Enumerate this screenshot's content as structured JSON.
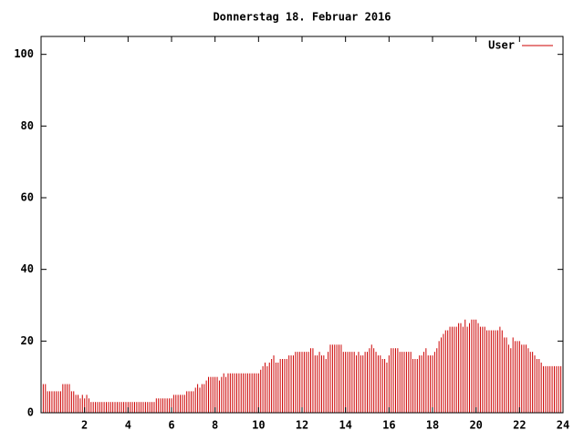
{
  "chart_data": {
    "type": "impulses",
    "title": "Donnerstag 18. Februar 2016",
    "legend_position": "top-right",
    "xlim": [
      0,
      24
    ],
    "xticks": [
      2,
      4,
      6,
      8,
      10,
      12,
      14,
      16,
      18,
      20,
      22,
      24
    ],
    "ylim": [
      0,
      105
    ],
    "yticks": [
      0,
      20,
      40,
      60,
      80,
      100
    ],
    "series": [
      {
        "name": "User",
        "color": "#cc0000",
        "x": [
          0,
          0.1,
          0.2,
          0.3,
          0.4,
          0.5,
          0.6,
          0.7,
          0.8,
          0.9,
          1,
          1.1,
          1.2,
          1.3,
          1.4,
          1.5,
          1.6,
          1.7,
          1.8,
          1.9,
          2,
          2.1,
          2.2,
          2.3,
          2.4,
          2.5,
          2.6,
          2.7,
          2.8,
          2.9,
          3,
          3.1,
          3.2,
          3.3,
          3.4,
          3.5,
          3.6,
          3.7,
          3.8,
          3.9,
          4,
          4.1,
          4.2,
          4.3,
          4.4,
          4.5,
          4.6,
          4.7,
          4.8,
          4.9,
          5,
          5.1,
          5.2,
          5.3,
          5.4,
          5.5,
          5.6,
          5.7,
          5.8,
          5.9,
          6,
          6.1,
          6.2,
          6.3,
          6.4,
          6.5,
          6.6,
          6.7,
          6.8,
          6.9,
          7,
          7.1,
          7.2,
          7.3,
          7.4,
          7.5,
          7.6,
          7.7,
          7.8,
          7.9,
          8,
          8.1,
          8.2,
          8.3,
          8.4,
          8.5,
          8.6,
          8.7,
          8.8,
          8.9,
          9,
          9.1,
          9.2,
          9.3,
          9.4,
          9.5,
          9.6,
          9.7,
          9.8,
          9.9,
          10,
          10.1,
          10.2,
          10.3,
          10.4,
          10.5,
          10.6,
          10.7,
          10.8,
          10.9,
          11,
          11.1,
          11.2,
          11.3,
          11.4,
          11.5,
          11.6,
          11.7,
          11.8,
          11.9,
          12,
          12.1,
          12.2,
          12.3,
          12.4,
          12.5,
          12.6,
          12.7,
          12.8,
          12.9,
          13,
          13.1,
          13.2,
          13.3,
          13.4,
          13.5,
          13.6,
          13.7,
          13.8,
          13.9,
          14,
          14.1,
          14.2,
          14.3,
          14.4,
          14.5,
          14.6,
          14.7,
          14.8,
          14.9,
          15,
          15.1,
          15.2,
          15.3,
          15.4,
          15.5,
          15.6,
          15.7,
          15.8,
          15.9,
          16,
          16.1,
          16.2,
          16.3,
          16.4,
          16.5,
          16.6,
          16.7,
          16.8,
          16.9,
          17,
          17.1,
          17.2,
          17.3,
          17.4,
          17.5,
          17.6,
          17.7,
          17.8,
          17.9,
          18,
          18.1,
          18.2,
          18.3,
          18.4,
          18.5,
          18.6,
          18.7,
          18.8,
          18.9,
          19,
          19.1,
          19.2,
          19.3,
          19.4,
          19.5,
          19.6,
          19.7,
          19.8,
          19.9,
          20,
          20.1,
          20.2,
          20.3,
          20.4,
          20.5,
          20.6,
          20.7,
          20.8,
          20.9,
          21,
          21.1,
          21.2,
          21.3,
          21.4,
          21.5,
          21.6,
          21.7,
          21.8,
          21.9,
          22,
          22.1,
          22.2,
          22.3,
          22.4,
          22.5,
          22.6,
          22.7,
          22.8,
          22.9,
          23,
          23.1,
          23.2,
          23.3,
          23.4,
          23.5,
          23.6,
          23.7,
          23.8,
          23.9
        ],
        "values": [
          9,
          8,
          8,
          6,
          6,
          6,
          6,
          6,
          6,
          6,
          8,
          8,
          8,
          8,
          6,
          6,
          5,
          5,
          4,
          5,
          4,
          5,
          4,
          3,
          3,
          3,
          3,
          3,
          3,
          3,
          3,
          3,
          3,
          3,
          3,
          3,
          3,
          3,
          3,
          3,
          3,
          3,
          3,
          3,
          3,
          3,
          3,
          3,
          3,
          3,
          3,
          3,
          3,
          4,
          4,
          4,
          4,
          4,
          4,
          4,
          4,
          5,
          5,
          5,
          5,
          5,
          5,
          6,
          6,
          6,
          6,
          7,
          8,
          7,
          8,
          8,
          9,
          10,
          10,
          10,
          10,
          10,
          9,
          10,
          11,
          10,
          11,
          11,
          11,
          11,
          11,
          11,
          11,
          11,
          11,
          11,
          11,
          11,
          11,
          11,
          11,
          12,
          13,
          14,
          13,
          14,
          15,
          16,
          14,
          14,
          15,
          15,
          15,
          15,
          16,
          16,
          16,
          17,
          17,
          17,
          17,
          17,
          17,
          17,
          18,
          18,
          16,
          16,
          17,
          16,
          16,
          15,
          17,
          19,
          19,
          19,
          19,
          19,
          19,
          17,
          17,
          17,
          17,
          17,
          17,
          16,
          17,
          16,
          16,
          17,
          17,
          18,
          19,
          18,
          17,
          16,
          16,
          15,
          15,
          14,
          16,
          18,
          18,
          18,
          18,
          17,
          17,
          17,
          17,
          17,
          17,
          15,
          15,
          15,
          16,
          16,
          17,
          18,
          16,
          16,
          16,
          17,
          18,
          20,
          21,
          22,
          23,
          23,
          24,
          24,
          24,
          24,
          25,
          25,
          24,
          26,
          24,
          25,
          26,
          26,
          26,
          25,
          24,
          24,
          24,
          23,
          23,
          23,
          23,
          23,
          23,
          24,
          23,
          21,
          21,
          19,
          18,
          21,
          20,
          20,
          20,
          19,
          19,
          19,
          18,
          17,
          17,
          16,
          15,
          15,
          14,
          13,
          13,
          13,
          13,
          13,
          13,
          13,
          13,
          13
        ]
      }
    ]
  }
}
